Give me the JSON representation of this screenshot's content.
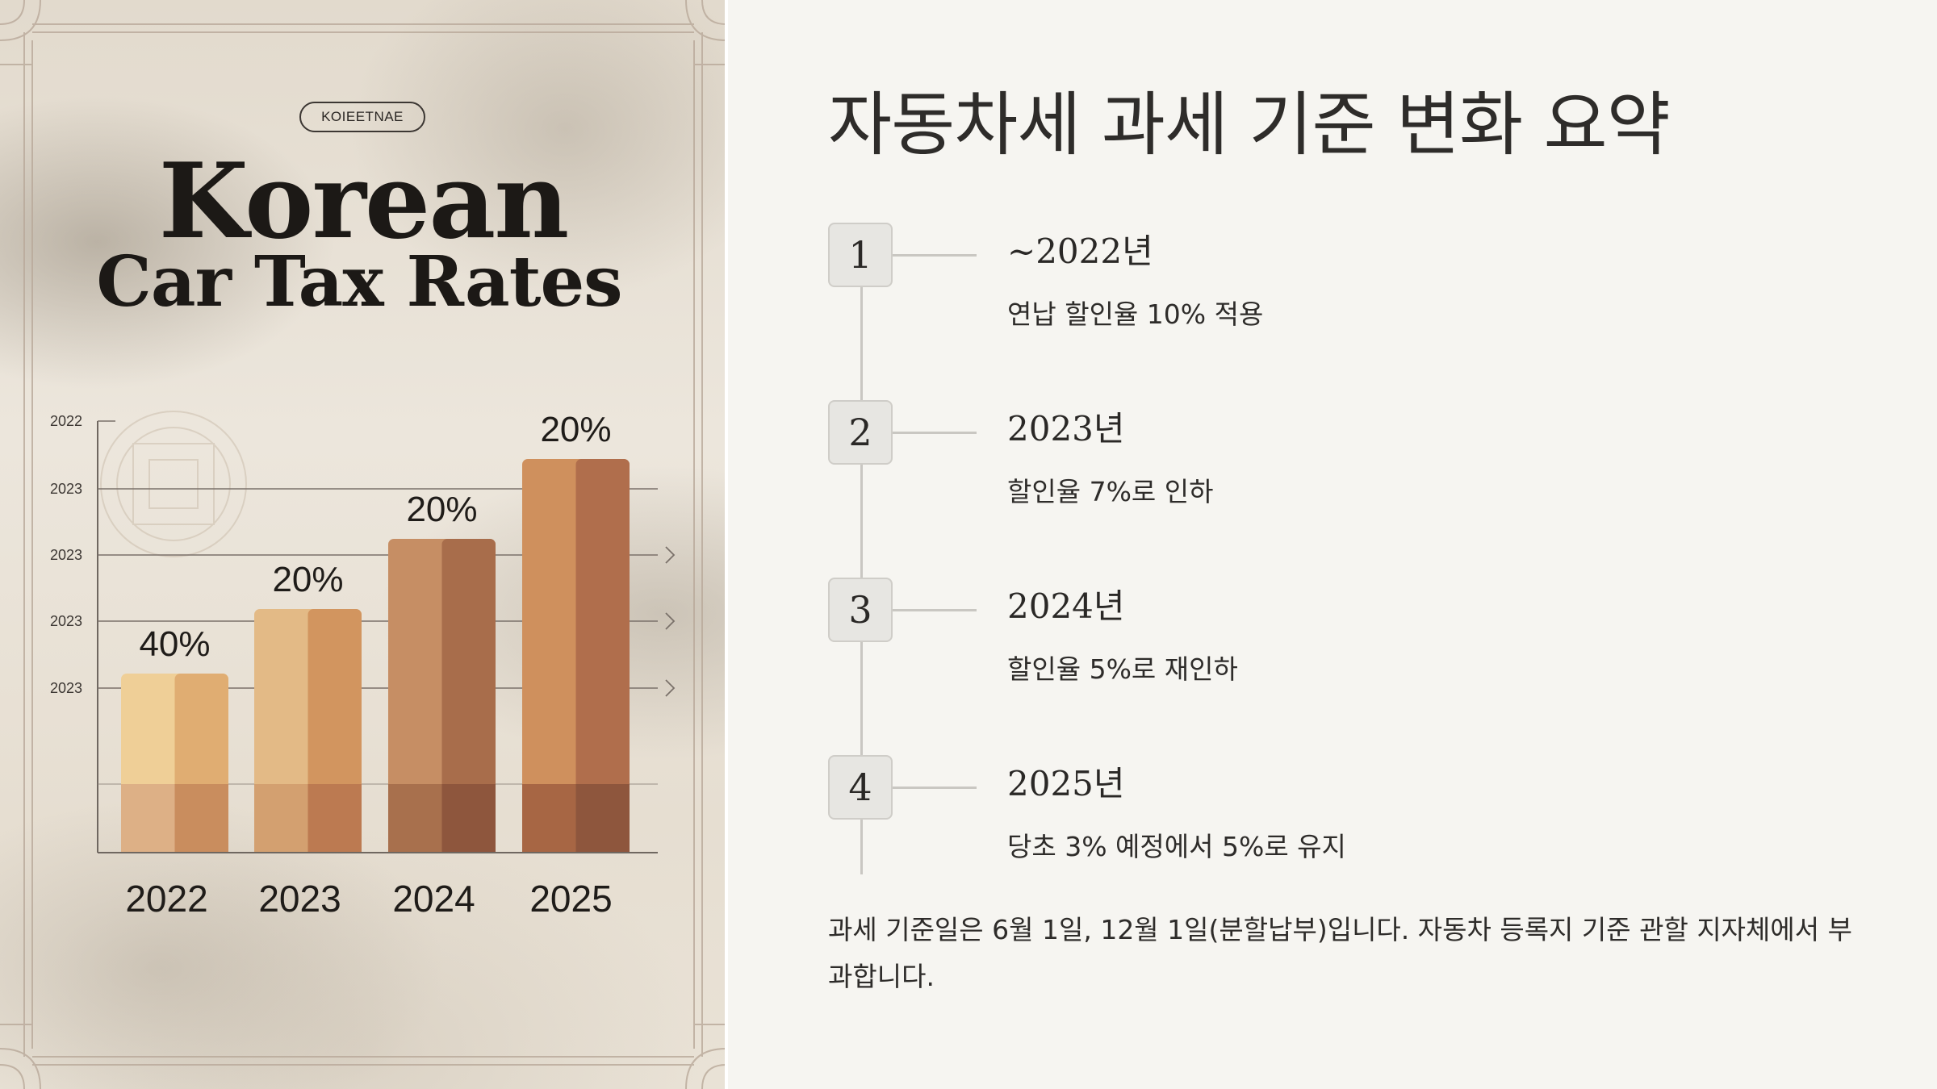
{
  "poster": {
    "badge": "KOIEETNAE",
    "title_line1": "Korean",
    "title_line2": "Car Tax Rates"
  },
  "chart_data": {
    "type": "bar",
    "title": "Korean Car Tax Rates",
    "categories": [
      "2022",
      "2023",
      "2024",
      "2025"
    ],
    "values": [
      40,
      20,
      20,
      20
    ],
    "value_labels": [
      "40%",
      "20%",
      "20%",
      "20%"
    ],
    "y_tick_labels": [
      "2022",
      "2023",
      "2023",
      "2023",
      "2023"
    ],
    "grid": true,
    "xlabel": "",
    "ylabel": ""
  },
  "main": {
    "title": "자동차세 과세 기준 변화 요약",
    "steps": [
      {
        "num": "1",
        "year": "~2022년",
        "desc": "연납 할인율 10% 적용"
      },
      {
        "num": "2",
        "year": "2023년",
        "desc": "할인율 7%로 인하"
      },
      {
        "num": "3",
        "year": "2024년",
        "desc": "할인율 5%로 재인하"
      },
      {
        "num": "4",
        "year": "2025년",
        "desc": "당초 3% 예정에서 5%로 유지"
      }
    ],
    "footnote": "과세 기준일은 6월 1일, 12월 1일(분할납부)입니다. 자동차 등록지 기준 관할 지자체에서 부과합니다."
  },
  "colors": {
    "poster_bg": "#e6ded1",
    "bar_light": "#edc98e",
    "bar_dark": "#b06e4c",
    "text_dark": "#2e2c2a",
    "step_box": "#e7e6e2"
  }
}
